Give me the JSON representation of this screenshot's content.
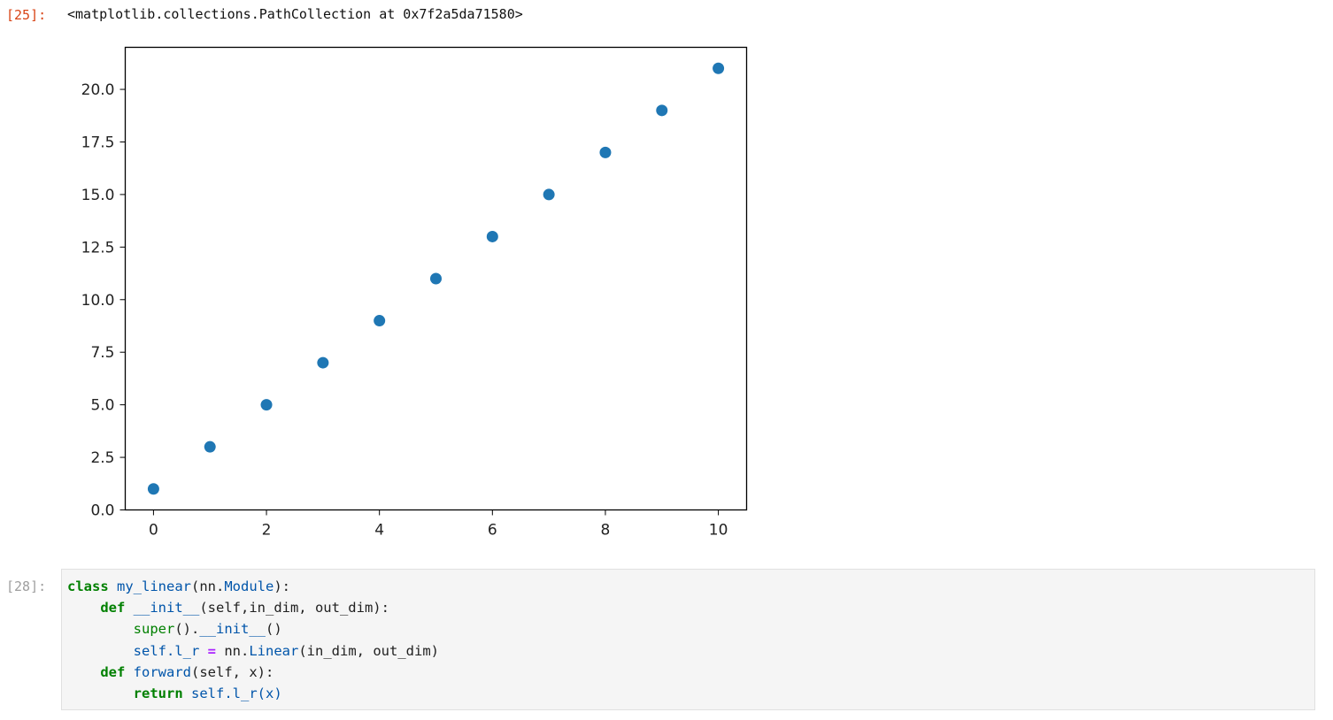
{
  "output_cell": {
    "prompt": "[25]:",
    "text": "<matplotlib.collections.PathCollection at 0x7f2a5da71580>"
  },
  "chart_data": {
    "type": "scatter",
    "x": [
      0,
      1,
      2,
      3,
      4,
      5,
      6,
      7,
      8,
      9,
      10
    ],
    "y": [
      1,
      3,
      5,
      7,
      9,
      11,
      13,
      15,
      17,
      19,
      21
    ],
    "xticks": [
      "0",
      "2",
      "4",
      "6",
      "8",
      "10"
    ],
    "yticks": [
      "0.0",
      "2.5",
      "5.0",
      "7.5",
      "10.0",
      "12.5",
      "15.0",
      "17.5",
      "20.0"
    ],
    "xlim": [
      -0.5,
      10.5
    ],
    "ylim": [
      0,
      22
    ],
    "grid": false,
    "marker_color": "#1f77b4"
  },
  "code_cell": {
    "prompt": "[28]:",
    "line1": {
      "kw": "class",
      "name": "my_linear",
      "rest1": "(nn.",
      "base": "Module",
      "rest2": "):"
    },
    "line2": {
      "kw": "def",
      "name": "__init__",
      "rest": "(self,in_dim, out_dim):"
    },
    "line3": {
      "builtin": "super",
      "rest1": "().",
      "method": "__init__",
      "rest2": "()"
    },
    "line4": {
      "lhs": "self.l_r",
      "op": "=",
      "mod": "nn.",
      "cls": "Linear",
      "rest": "(in_dim, out_dim)"
    },
    "line5": {
      "kw": "def",
      "name": "forward",
      "rest": "(self, x):"
    },
    "line6": {
      "kw": "return",
      "call": "self.l_r(x)"
    }
  }
}
